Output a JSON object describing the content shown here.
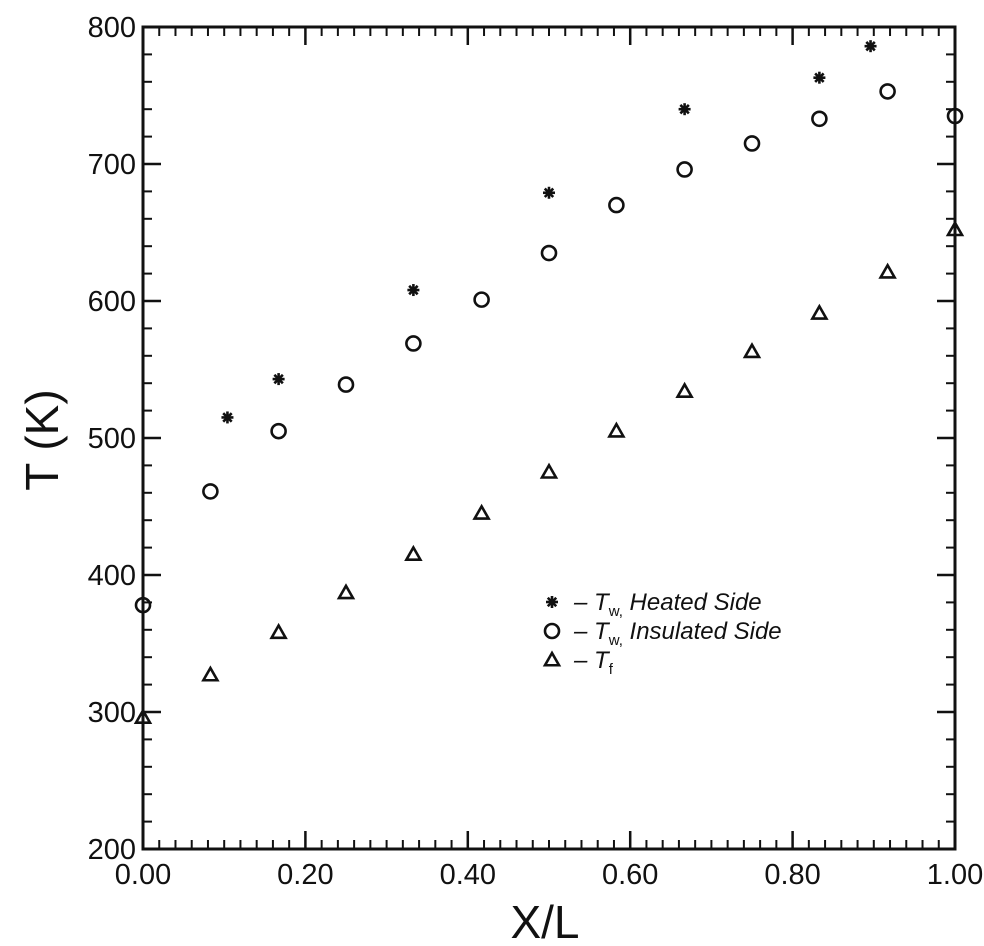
{
  "chart_data": {
    "type": "scatter",
    "xlabel": "X/L",
    "ylabel": "T  (K)",
    "xlim": [
      0,
      1.0
    ],
    "ylim": [
      200,
      800
    ],
    "x_ticks": [
      "0.00",
      "0.20",
      "0.40",
      "0.60",
      "0.80",
      "1.00"
    ],
    "y_ticks": [
      "200",
      "300",
      "400",
      "500",
      "600",
      "700",
      "800"
    ],
    "grid": false,
    "legend_position": "lower-right",
    "series": [
      {
        "name": "Heated Side",
        "legend_symbol": "T",
        "legend_subscript": "w,",
        "marker": "asterisk",
        "points": [
          [
            0.104,
            515
          ],
          [
            0.167,
            543
          ],
          [
            0.333,
            608
          ],
          [
            0.5,
            679
          ],
          [
            0.667,
            740
          ],
          [
            0.833,
            763
          ],
          [
            0.896,
            786
          ]
        ]
      },
      {
        "name": "Insulated Side",
        "legend_symbol": "T",
        "legend_subscript": "w,",
        "marker": "circle",
        "points": [
          [
            0.0,
            378
          ],
          [
            0.083,
            461
          ],
          [
            0.167,
            505
          ],
          [
            0.25,
            539
          ],
          [
            0.333,
            569
          ],
          [
            0.417,
            601
          ],
          [
            0.5,
            635
          ],
          [
            0.583,
            670
          ],
          [
            0.667,
            696
          ],
          [
            0.75,
            715
          ],
          [
            0.833,
            733
          ],
          [
            0.917,
            753
          ],
          [
            1.0,
            735
          ]
        ]
      },
      {
        "name": "",
        "legend_symbol": "T",
        "legend_subscript": "f",
        "marker": "triangle",
        "points": [
          [
            0.0,
            296
          ],
          [
            0.083,
            327
          ],
          [
            0.167,
            358
          ],
          [
            0.25,
            387
          ],
          [
            0.333,
            415
          ],
          [
            0.417,
            445
          ],
          [
            0.5,
            475
          ],
          [
            0.583,
            505
          ],
          [
            0.667,
            534
          ],
          [
            0.75,
            563
          ],
          [
            0.833,
            591
          ],
          [
            0.917,
            621
          ],
          [
            1.0,
            652
          ]
        ]
      }
    ]
  }
}
